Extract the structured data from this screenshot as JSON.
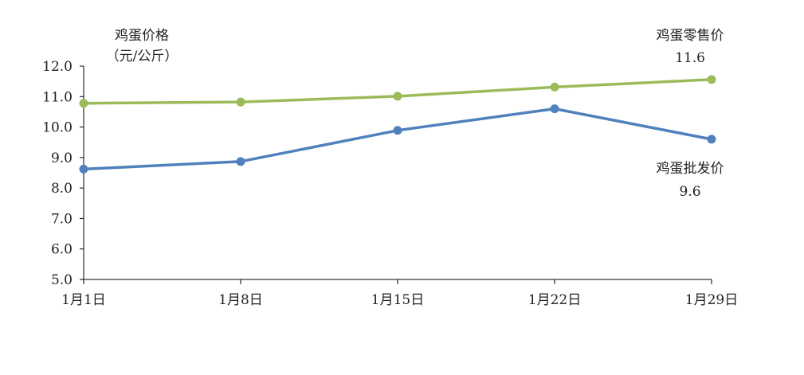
{
  "chart_data": {
    "type": "line",
    "ylabel_lines": [
      "鸡蛋价格",
      "（元/公斤）"
    ],
    "categories": [
      "1月1日",
      "1月8日",
      "1月15日",
      "1月22日",
      "1月29日"
    ],
    "ylim": [
      5.0,
      12.0
    ],
    "yticks": [
      "5.0",
      "6.0",
      "7.0",
      "8.0",
      "9.0",
      "10.0",
      "11.0",
      "12.0"
    ],
    "grid": false,
    "series": [
      {
        "name": "鸡蛋零售价",
        "color": "#9bbb59",
        "values": [
          10.78,
          10.82,
          11.01,
          11.31,
          11.56
        ],
        "end_label": "11.6"
      },
      {
        "name": "鸡蛋批发价",
        "color": "#4f81bd",
        "values": [
          8.62,
          8.87,
          9.89,
          10.6,
          9.6
        ],
        "end_label": "9.6"
      }
    ]
  }
}
